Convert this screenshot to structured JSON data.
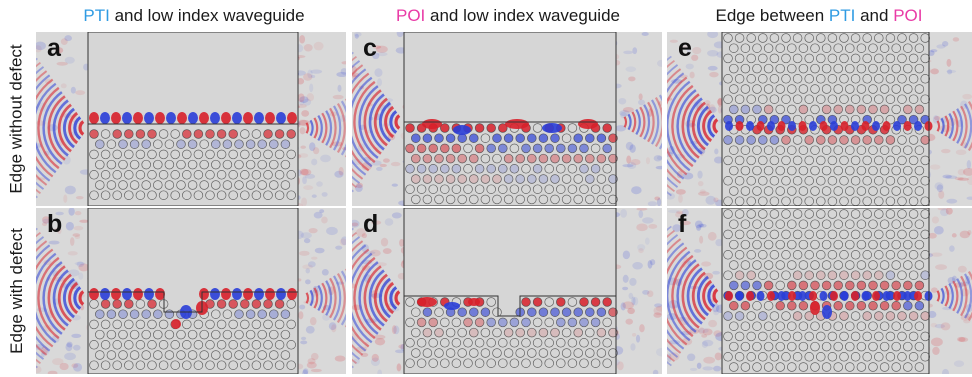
{
  "columns": [
    {
      "prefix": "",
      "k1": "PTI",
      "mid": " and low index waveguide",
      "k2": "",
      "suffix": ""
    },
    {
      "prefix": "",
      "k1": "POI",
      "mid": " and low index waveguide",
      "k2": "",
      "suffix": ""
    },
    {
      "prefix": "Edge between ",
      "k1": "PTI",
      "mid": " and ",
      "k2": "POI",
      "suffix": ""
    }
  ],
  "rows": [
    {
      "label": "Edge without defect"
    },
    {
      "label": "Edge with defect"
    }
  ],
  "panels": [
    {
      "label": "a",
      "kind": "pti-waveguide",
      "defect": false
    },
    {
      "label": "c",
      "kind": "poi-waveguide",
      "defect": false
    },
    {
      "label": "e",
      "kind": "pti-poi-edge",
      "defect": false
    },
    {
      "label": "b",
      "kind": "pti-waveguide",
      "defect": true
    },
    {
      "label": "d",
      "kind": "poi-waveguide",
      "defect": true
    },
    {
      "label": "f",
      "kind": "pti-poi-edge",
      "defect": true
    }
  ],
  "colors": {
    "pti": "#2f9be3",
    "poi": "#e93aa6",
    "field_positive": "#d8202a",
    "field_negative": "#2a3ed8",
    "background": "#d9d9d9"
  }
}
